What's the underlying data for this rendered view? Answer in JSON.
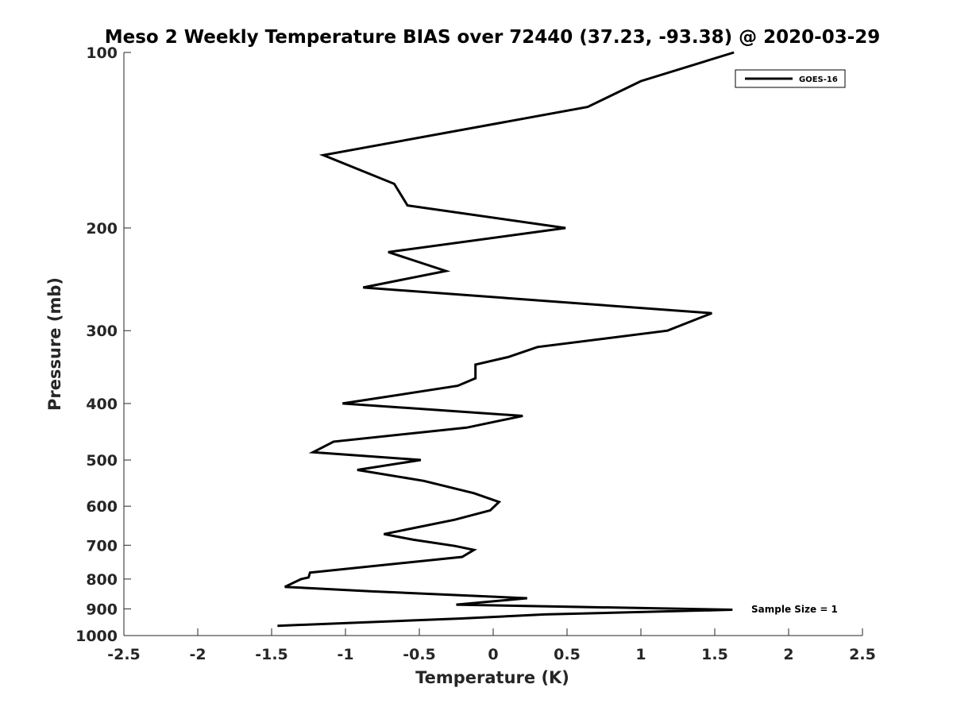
{
  "chart_data": {
    "type": "line",
    "title": "Meso 2 Weekly Temperature BIAS over 72440 (37.23, -93.38) @ 2020-03-29",
    "xlabel": "Temperature (K)",
    "ylabel": "Pressure (mb)",
    "xlim": [
      -2.5,
      2.5
    ],
    "ylim": [
      100,
      1000
    ],
    "y_scale": "log",
    "y_reversed": true,
    "x_ticks": [
      "-2.5",
      "-2",
      "-1.5",
      "-1",
      "-0.5",
      "0",
      "0.5",
      "1",
      "1.5",
      "2",
      "2.5"
    ],
    "x_tick_values": [
      -2.5,
      -2,
      -1.5,
      -1,
      -0.5,
      0,
      0.5,
      1,
      1.5,
      2,
      2.5
    ],
    "y_ticks": [
      "100",
      "200",
      "300",
      "400",
      "500",
      "600",
      "700",
      "800",
      "900",
      "1000"
    ],
    "y_tick_values": [
      100,
      200,
      300,
      400,
      500,
      600,
      700,
      800,
      900,
      1000
    ],
    "grid": false,
    "legend_position": "top-right",
    "series": [
      {
        "name": "GOES-16",
        "color": "#000000",
        "points": [
          {
            "x": 1.63,
            "p": 100
          },
          {
            "x": 1.0,
            "p": 112
          },
          {
            "x": 0.64,
            "p": 124
          },
          {
            "x": -1.15,
            "p": 150
          },
          {
            "x": -0.67,
            "p": 168
          },
          {
            "x": -0.58,
            "p": 183
          },
          {
            "x": 0.49,
            "p": 200
          },
          {
            "x": -0.71,
            "p": 220
          },
          {
            "x": -0.32,
            "p": 237
          },
          {
            "x": -0.88,
            "p": 253
          },
          {
            "x": 1.48,
            "p": 280
          },
          {
            "x": 1.18,
            "p": 300
          },
          {
            "x": 0.3,
            "p": 320
          },
          {
            "x": 0.1,
            "p": 333
          },
          {
            "x": -0.12,
            "p": 343
          },
          {
            "x": -0.12,
            "p": 362
          },
          {
            "x": -0.24,
            "p": 373
          },
          {
            "x": -1.02,
            "p": 400
          },
          {
            "x": 0.2,
            "p": 420
          },
          {
            "x": -0.18,
            "p": 440
          },
          {
            "x": -1.08,
            "p": 465
          },
          {
            "x": -1.22,
            "p": 485
          },
          {
            "x": -0.49,
            "p": 500
          },
          {
            "x": -0.92,
            "p": 520
          },
          {
            "x": -0.47,
            "p": 543
          },
          {
            "x": -0.13,
            "p": 570
          },
          {
            "x": 0.04,
            "p": 590
          },
          {
            "x": -0.02,
            "p": 610
          },
          {
            "x": -0.26,
            "p": 633
          },
          {
            "x": -0.74,
            "p": 670
          },
          {
            "x": -0.54,
            "p": 685
          },
          {
            "x": -0.26,
            "p": 702
          },
          {
            "x": -0.13,
            "p": 713
          },
          {
            "x": -0.21,
            "p": 733
          },
          {
            "x": -1.24,
            "p": 780
          },
          {
            "x": -1.25,
            "p": 795
          },
          {
            "x": -1.3,
            "p": 800
          },
          {
            "x": -1.41,
            "p": 825
          },
          {
            "x": -0.82,
            "p": 840
          },
          {
            "x": 0.23,
            "p": 863
          },
          {
            "x": -0.25,
            "p": 885
          },
          {
            "x": 1.62,
            "p": 903
          },
          {
            "x": 0.35,
            "p": 920
          },
          {
            "x": -0.23,
            "p": 935
          },
          {
            "x": -1.46,
            "p": 962
          }
        ]
      }
    ],
    "annotations": [
      {
        "text": "Sample Size = 1"
      }
    ]
  }
}
